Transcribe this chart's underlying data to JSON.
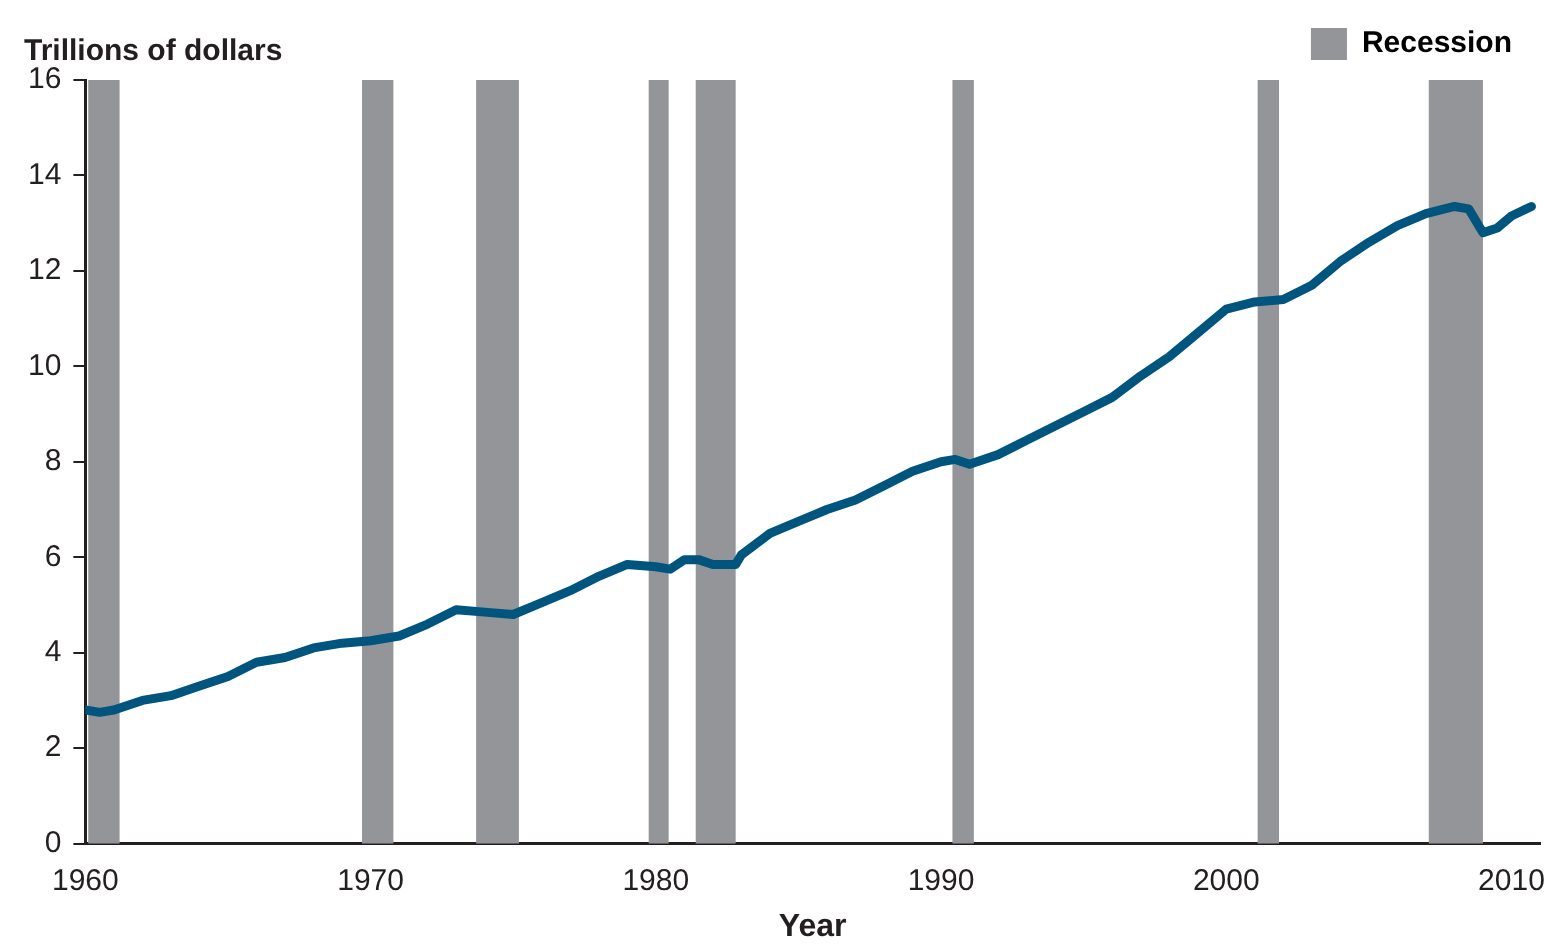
{
  "chart_data": {
    "type": "line",
    "ylabel": "Trillions of dollars",
    "xlabel": "Year",
    "x": [
      1960,
      1960.5,
      1961,
      1962,
      1963,
      1964,
      1965,
      1966,
      1967,
      1968,
      1969,
      1970,
      1971,
      1972,
      1973,
      1974,
      1975,
      1976,
      1977,
      1978,
      1979,
      1980,
      1980.5,
      1981,
      1981.5,
      1982,
      1982.8,
      1983,
      1984,
      1985,
      1986,
      1987,
      1988,
      1989,
      1990,
      1990.5,
      1991,
      1992,
      1993,
      1994,
      1995,
      1996,
      1997,
      1998,
      1999,
      2000,
      2001,
      2002,
      2003,
      2004,
      2005,
      2006,
      2007,
      2008,
      2008.5,
      2009,
      2009.5,
      2010,
      2010.7
    ],
    "series": [
      {
        "color": "#00557f",
        "values": [
          2.8,
          2.75,
          2.8,
          3.0,
          3.1,
          3.3,
          3.5,
          3.8,
          3.9,
          4.1,
          4.2,
          4.25,
          4.35,
          4.6,
          4.9,
          4.85,
          4.8,
          5.05,
          5.3,
          5.6,
          5.85,
          5.8,
          5.75,
          5.95,
          5.95,
          5.85,
          5.85,
          6.05,
          6.5,
          6.75,
          7.0,
          7.2,
          7.5,
          7.8,
          8.0,
          8.05,
          7.95,
          8.15,
          8.45,
          8.75,
          9.05,
          9.35,
          9.8,
          10.2,
          10.7,
          11.2,
          11.35,
          11.4,
          11.7,
          12.2,
          12.6,
          12.95,
          13.2,
          13.35,
          13.3,
          12.8,
          12.9,
          13.15,
          13.35
        ]
      }
    ],
    "xlim": [
      1960,
      2011
    ],
    "xticks": [
      1960,
      1970,
      1980,
      1990,
      2000,
      2010
    ],
    "ylim": [
      0,
      16
    ],
    "yticks": [
      0,
      2,
      4,
      6,
      8,
      10,
      12,
      14,
      16
    ],
    "bands": [
      {
        "axis": "x",
        "from": 1960.1,
        "to": 1961.2,
        "label": "Recession",
        "color": "#939598"
      },
      {
        "axis": "x",
        "from": 1969.7,
        "to": 1970.8,
        "color": "#939598"
      },
      {
        "axis": "x",
        "from": 1973.7,
        "to": 1975.2,
        "color": "#939598"
      },
      {
        "axis": "x",
        "from": 1979.75,
        "to": 1980.45,
        "color": "#939598"
      },
      {
        "axis": "x",
        "from": 1981.4,
        "to": 1982.8,
        "color": "#939598"
      },
      {
        "axis": "x",
        "from": 1990.4,
        "to": 1991.15,
        "color": "#939598"
      },
      {
        "axis": "x",
        "from": 2001.1,
        "to": 2001.85,
        "color": "#939598"
      },
      {
        "axis": "x",
        "from": 2007.1,
        "to": 2009.0,
        "color": "#939598"
      }
    ],
    "grid": false,
    "legend": "top right",
    "marker": "none",
    "line_style": "solid"
  }
}
